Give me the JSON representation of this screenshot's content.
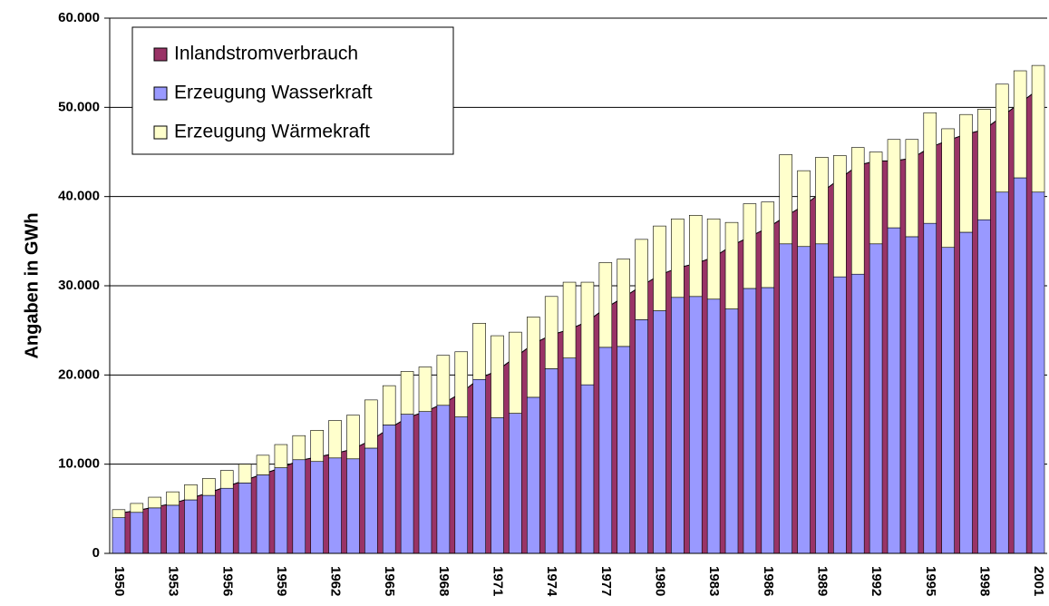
{
  "chart_data": {
    "type": "bar-area",
    "y_label": "Angaben in GWh",
    "categories": [
      "1950",
      null,
      null,
      "1953",
      null,
      null,
      "1956",
      null,
      null,
      "1959",
      null,
      null,
      "1962",
      null,
      null,
      "1965",
      null,
      null,
      "1968",
      null,
      null,
      "1971",
      null,
      null,
      "1974",
      null,
      null,
      "1977",
      null,
      null,
      "1980",
      null,
      null,
      "1983",
      null,
      null,
      "1986",
      null,
      null,
      "1989",
      null,
      null,
      "1992",
      null,
      null,
      "1995",
      null,
      null,
      "1998",
      null,
      null,
      "2001"
    ],
    "series": [
      {
        "name": "Inlandstromverbrauch",
        "color": "#993366",
        "kind": "area",
        "values": [
          4500,
          4800,
          5200,
          5600,
          6200,
          6800,
          7500,
          8200,
          8900,
          9600,
          10400,
          10800,
          11200,
          11700,
          12700,
          14000,
          15200,
          15900,
          16800,
          18000,
          19600,
          20500,
          22000,
          23500,
          24500,
          25100,
          26000,
          27500,
          28700,
          30000,
          31200,
          32000,
          32500,
          33200,
          34500,
          35500,
          36500,
          37800,
          39000,
          40500,
          42000,
          43500,
          44000,
          44000,
          44300,
          45500,
          46300,
          47000,
          47500,
          49000,
          50500,
          52000
        ]
      },
      {
        "name": "Erzeugung Wasserkraft",
        "color": "#9999ff",
        "kind": "bar",
        "values": [
          4000,
          4600,
          5100,
          5400,
          6000,
          6500,
          7300,
          7900,
          8800,
          9600,
          10500,
          10300,
          10700,
          10600,
          11800,
          14400,
          15600,
          15900,
          16600,
          15300,
          19500,
          15200,
          15700,
          17500,
          20700,
          21900,
          18900,
          23100,
          23200,
          26200,
          27200,
          28700,
          28800,
          28500,
          27400,
          29700,
          29800,
          34700,
          34400,
          34700,
          31000,
          31300,
          34700,
          36500,
          35500,
          37000,
          34300,
          36000,
          37400,
          40500,
          42100,
          40500
        ]
      },
      {
        "name": "Erzeugung Wärmekraft",
        "color": "#ffffcc",
        "kind": "bar",
        "values": [
          900,
          1000,
          1200,
          1500,
          1700,
          1900,
          2000,
          2100,
          2200,
          2600,
          2700,
          3500,
          4200,
          4900,
          5400,
          4400,
          4800,
          5000,
          5600,
          7300,
          6300,
          9200,
          9100,
          9000,
          8100,
          8500,
          11500,
          9500,
          9800,
          9000,
          9500,
          8800,
          9100,
          9000,
          9700,
          9500,
          9600,
          10000,
          8500,
          9700,
          13600,
          14200,
          10300,
          9900,
          10900,
          12400,
          13300,
          13200,
          12400,
          12100,
          12000,
          14200
        ]
      }
    ],
    "ylim": [
      0,
      60000
    ],
    "yticks": [
      0,
      {
        "value": 10000,
        "label": "10.000"
      },
      {
        "value": 20000,
        "label": "20.000"
      },
      {
        "value": 30000,
        "label": "30.000"
      },
      {
        "value": 40000,
        "label": "40.000"
      },
      {
        "value": 50000,
        "label": "50.000"
      },
      {
        "value": 60000,
        "label": "60.000"
      }
    ],
    "grid": true,
    "legend": "top-left"
  }
}
